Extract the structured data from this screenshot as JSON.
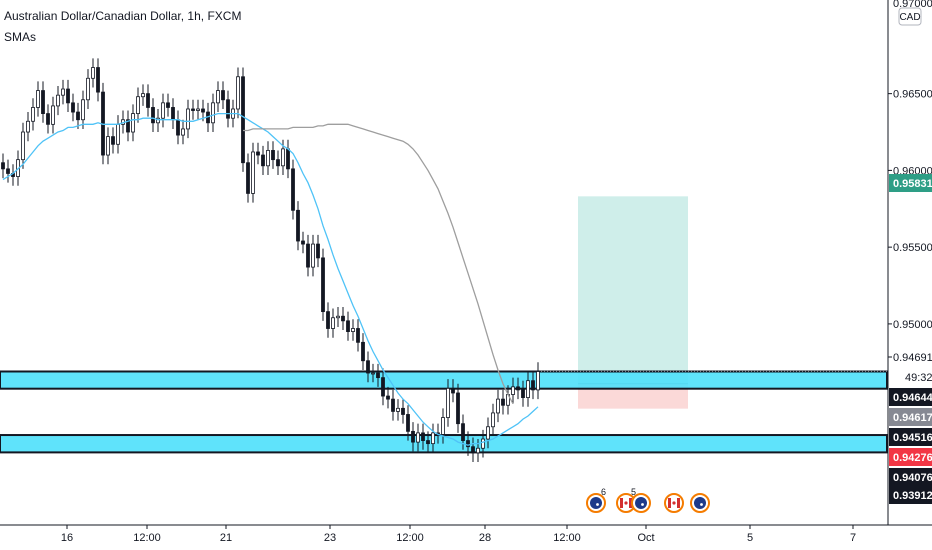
{
  "header": {
    "symbol_title": "Australian Dollar/Canadian Dollar, 1h, FXCM",
    "indicator_label": "SMAs"
  },
  "axis": {
    "currency_badge": "CAD",
    "top_partial_label": "0.97000"
  },
  "colors": {
    "background": "#ffffff",
    "candle": "#131722",
    "sma_fast": "#4fc3f7",
    "sma_slow": "#9e9e9e",
    "zone_fill": "#4ee0fb",
    "zone_border": "#131722",
    "target_fill": "#cfeeea",
    "stop_fill": "#fbd9d8",
    "badge_green": "#2e9e86",
    "badge_black": "#131722",
    "badge_red": "#f23645",
    "badge_grey": "#868993"
  },
  "chart_data": {
    "type": "candlestick",
    "title": "Australian Dollar/Canadian Dollar, 1h, FXCM",
    "x_tick_labels": [
      "16",
      "12:00",
      "21",
      "23",
      "12:00",
      "28",
      "12:00",
      "Oct",
      "5",
      "7"
    ],
    "y_tick_labels": [
      0.965,
      0.96,
      0.955,
      0.95
    ],
    "ylim": [
      0.9369,
      0.9711
    ],
    "grid": false,
    "legend": "none",
    "price_series": {
      "name": "AUD/CAD",
      "values": [
        0.9601,
        0.9598,
        0.9596,
        0.9607,
        0.9625,
        0.9632,
        0.9641,
        0.9652,
        0.9637,
        0.963,
        0.9642,
        0.9649,
        0.9653,
        0.9644,
        0.9638,
        0.9633,
        0.9646,
        0.966,
        0.9667,
        0.9651,
        0.961,
        0.9622,
        0.9617,
        0.963,
        0.9633,
        0.9625,
        0.9637,
        0.9648,
        0.965,
        0.9641,
        0.9631,
        0.9634,
        0.9644,
        0.9641,
        0.9633,
        0.9623,
        0.9627,
        0.964,
        0.9639,
        0.964,
        0.9638,
        0.9631,
        0.9644,
        0.9652,
        0.9646,
        0.9634,
        0.964,
        0.9661,
        0.9605,
        0.9585,
        0.9612,
        0.961,
        0.9603,
        0.9613,
        0.9607,
        0.9603,
        0.9614,
        0.9601,
        0.9574,
        0.9554,
        0.9552,
        0.9537,
        0.9552,
        0.9543,
        0.9508,
        0.9497,
        0.9504,
        0.9505,
        0.9502,
        0.9495,
        0.9497,
        0.9488,
        0.9476,
        0.9468,
        0.9468,
        0.9465,
        0.9453,
        0.9451,
        0.9443,
        0.9445,
        0.9441,
        0.943,
        0.9423,
        0.9429,
        0.9424,
        0.9422,
        0.9429,
        0.9428,
        0.9439,
        0.9458,
        0.9455,
        0.9435,
        0.9424,
        0.942,
        0.9416,
        0.9419,
        0.9425,
        0.9433,
        0.9442,
        0.9451,
        0.9447,
        0.9454,
        0.9459,
        0.9457,
        0.9452,
        0.9463,
        0.9457,
        0.9469
      ],
      "last_price": 0.94691,
      "countdown": "49:32"
    },
    "sma_fast": {
      "name": "SMA",
      "values": [
        0.9594,
        0.9596,
        0.9598,
        0.9601,
        0.9604,
        0.9608,
        0.9612,
        0.9616,
        0.9619,
        0.9621,
        0.9623,
        0.9625,
        0.9626,
        0.9628,
        0.9628,
        0.9629,
        0.963,
        0.963,
        0.963,
        0.9631,
        0.963,
        0.963,
        0.963,
        0.963,
        0.9631,
        0.9632,
        0.9633,
        0.9633,
        0.9634,
        0.9634,
        0.9634,
        0.9633,
        0.9633,
        0.9633,
        0.9633,
        0.9633,
        0.9632,
        0.9632,
        0.9632,
        0.9633,
        0.9634,
        0.9635,
        0.9636,
        0.9637,
        0.9637,
        0.9637,
        0.9637,
        0.9637,
        0.9635,
        0.9633,
        0.9631,
        0.9629,
        0.9627,
        0.9625,
        0.9622,
        0.9619,
        0.9616,
        0.9614,
        0.9611,
        0.9605,
        0.9598,
        0.9592,
        0.9584,
        0.9575,
        0.9564,
        0.9555,
        0.9545,
        0.9536,
        0.9528,
        0.952,
        0.9512,
        0.9505,
        0.9497,
        0.9489,
        0.9482,
        0.9476,
        0.947,
        0.9465,
        0.946,
        0.9455,
        0.9451,
        0.9448,
        0.9444,
        0.944,
        0.9436,
        0.9433,
        0.943,
        0.9428,
        0.9427,
        0.9426,
        0.9425,
        0.9423,
        0.9422,
        0.9421,
        0.9422,
        0.9422,
        0.9423,
        0.9424,
        0.9425,
        0.9427,
        0.9429,
        0.9431,
        0.9433,
        0.9435,
        0.9438,
        0.944,
        0.9443,
        0.9446
      ]
    },
    "sma_slow": {
      "name": "SMA",
      "values": [
        0.9626,
        0.9626,
        0.9627,
        0.9627,
        0.9627,
        0.9627,
        0.9627,
        0.9627,
        0.9627,
        0.9627,
        0.9628,
        0.9628,
        0.9628,
        0.9628,
        0.9628,
        0.9629,
        0.9629,
        0.963,
        0.963,
        0.963,
        0.963,
        0.963,
        0.9629,
        0.9628,
        0.9627,
        0.9626,
        0.9625,
        0.9624,
        0.9623,
        0.9622,
        0.9621,
        0.962,
        0.9619,
        0.9617,
        0.9614,
        0.961,
        0.9605,
        0.96,
        0.9594,
        0.9588,
        0.958,
        0.9572,
        0.9563,
        0.9553,
        0.9543,
        0.9533,
        0.9523,
        0.9513,
        0.9502,
        0.9491,
        0.948,
        0.947,
        0.9461,
        0.9454,
        0.9448
      ],
      "start_index": 48
    },
    "support_resistance_zones": [
      {
        "high": 0.9469,
        "low": 0.94578
      },
      {
        "high": 0.94276,
        "low": 0.94163
      }
    ],
    "long_position": {
      "entry": 0.9461,
      "target": 0.95831,
      "stop": 0.94448
    },
    "price_labels": [
      {
        "value": 0.95831,
        "text": "0.95831",
        "style": "green"
      },
      {
        "value": 0.94691,
        "text": "0.94691",
        "style": "plain"
      },
      {
        "value": 0.94644,
        "text": "0.94644",
        "style": "black"
      },
      {
        "value": 0.94617,
        "text": "0.94617",
        "style": "grey"
      },
      {
        "value": 0.94516,
        "text": "0.94516",
        "style": "black"
      },
      {
        "value": 0.94276,
        "text": "0.94276",
        "style": "red"
      },
      {
        "value": 0.94076,
        "text": "0.94076",
        "style": "black"
      },
      {
        "value": 0.93912,
        "text": "0.93912",
        "style": "black"
      }
    ],
    "event_markers": [
      {
        "flag": "AU",
        "count": "6"
      },
      {
        "flag": "CA",
        "count": "5"
      },
      {
        "flag": "AU",
        "count": ""
      },
      {
        "flag": "CA",
        "count": ""
      },
      {
        "flag": "AU",
        "count": ""
      }
    ]
  }
}
